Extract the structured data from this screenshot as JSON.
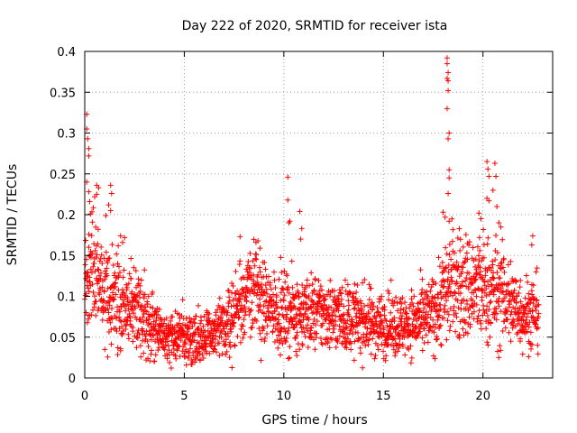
{
  "chart_data": {
    "type": "scatter",
    "title": "Day 222 of 2020, SRMTID for receiver ista",
    "xlabel": "GPS time / hours",
    "ylabel": "SRMTID / TECUs",
    "xlim": [
      0,
      23.5
    ],
    "ylim": [
      0,
      0.4
    ],
    "x_ticks": [
      0,
      5,
      10,
      15,
      20
    ],
    "x_tick_labels": [
      "0",
      "5",
      "10",
      "15",
      "20"
    ],
    "y_ticks": [
      0,
      0.05,
      0.1,
      0.15,
      0.2,
      0.25,
      0.3,
      0.35,
      0.4
    ],
    "y_tick_labels": [
      "0",
      "0.05",
      "0.1",
      "0.15",
      "0.2",
      "0.25",
      "0.3",
      "0.35",
      "0.4"
    ],
    "grid": true,
    "marker": "+",
    "series_color": "#ff0000",
    "trend": {
      "x": [
        0,
        0.5,
        1,
        2,
        3,
        3.5,
        4,
        5,
        6,
        7,
        7.5,
        8,
        8.5,
        9,
        10,
        11,
        12,
        13,
        14,
        15,
        16,
        17,
        17.5,
        18,
        18.5,
        19,
        20,
        21,
        22,
        22.8
      ],
      "y": [
        0.12,
        0.14,
        0.11,
        0.09,
        0.08,
        0.06,
        0.05,
        0.05,
        0.05,
        0.06,
        0.08,
        0.1,
        0.11,
        0.09,
        0.08,
        0.08,
        0.08,
        0.075,
        0.07,
        0.065,
        0.065,
        0.07,
        0.08,
        0.1,
        0.12,
        0.11,
        0.11,
        0.1,
        0.08,
        0.08
      ],
      "spread": [
        0.05,
        0.05,
        0.045,
        0.035,
        0.03,
        0.025,
        0.022,
        0.022,
        0.022,
        0.025,
        0.03,
        0.035,
        0.04,
        0.03,
        0.03,
        0.03,
        0.03,
        0.028,
        0.028,
        0.025,
        0.025,
        0.028,
        0.03,
        0.04,
        0.045,
        0.045,
        0.045,
        0.04,
        0.03,
        0.03
      ]
    },
    "point_count": 2300,
    "outliers": [
      {
        "x": 0.1,
        "y": 0.323
      },
      {
        "x": 0.1,
        "y": 0.305
      },
      {
        "x": 0.15,
        "y": 0.293
      },
      {
        "x": 0.2,
        "y": 0.281
      },
      {
        "x": 0.2,
        "y": 0.272
      },
      {
        "x": 0.1,
        "y": 0.24
      },
      {
        "x": 0.2,
        "y": 0.228
      },
      {
        "x": 0.25,
        "y": 0.216
      },
      {
        "x": 0.6,
        "y": 0.236
      },
      {
        "x": 0.7,
        "y": 0.233
      },
      {
        "x": 0.5,
        "y": 0.222
      },
      {
        "x": 0.3,
        "y": 0.201
      },
      {
        "x": 1.3,
        "y": 0.236
      },
      {
        "x": 1.35,
        "y": 0.226
      },
      {
        "x": 1.2,
        "y": 0.212
      },
      {
        "x": 1.3,
        "y": 0.205
      },
      {
        "x": 1.8,
        "y": 0.174
      },
      {
        "x": 1.9,
        "y": 0.166
      },
      {
        "x": 2.0,
        "y": 0.172
      },
      {
        "x": 10.2,
        "y": 0.246
      },
      {
        "x": 10.2,
        "y": 0.218
      },
      {
        "x": 10.3,
        "y": 0.192
      },
      {
        "x": 10.25,
        "y": 0.19
      },
      {
        "x": 10.8,
        "y": 0.204
      },
      {
        "x": 10.9,
        "y": 0.183
      },
      {
        "x": 10.85,
        "y": 0.17
      },
      {
        "x": 7.8,
        "y": 0.173
      },
      {
        "x": 8.6,
        "y": 0.166
      },
      {
        "x": 8.7,
        "y": 0.168
      },
      {
        "x": 8.8,
        "y": 0.159
      },
      {
        "x": 18.2,
        "y": 0.392
      },
      {
        "x": 18.2,
        "y": 0.385
      },
      {
        "x": 18.25,
        "y": 0.374
      },
      {
        "x": 18.2,
        "y": 0.367
      },
      {
        "x": 18.25,
        "y": 0.364
      },
      {
        "x": 18.25,
        "y": 0.352
      },
      {
        "x": 18.2,
        "y": 0.33
      },
      {
        "x": 18.3,
        "y": 0.3
      },
      {
        "x": 18.25,
        "y": 0.293
      },
      {
        "x": 18.3,
        "y": 0.255
      },
      {
        "x": 18.3,
        "y": 0.245
      },
      {
        "x": 18.25,
        "y": 0.226
      },
      {
        "x": 18.0,
        "y": 0.203
      },
      {
        "x": 18.1,
        "y": 0.197
      },
      {
        "x": 18.3,
        "y": 0.192
      },
      {
        "x": 20.2,
        "y": 0.265
      },
      {
        "x": 20.25,
        "y": 0.256
      },
      {
        "x": 20.6,
        "y": 0.263
      },
      {
        "x": 20.65,
        "y": 0.247
      },
      {
        "x": 20.3,
        "y": 0.247
      },
      {
        "x": 20.2,
        "y": 0.22
      },
      {
        "x": 20.3,
        "y": 0.217
      },
      {
        "x": 20.5,
        "y": 0.23
      },
      {
        "x": 20.7,
        "y": 0.21
      },
      {
        "x": 19.8,
        "y": 0.202
      },
      {
        "x": 19.9,
        "y": 0.195
      },
      {
        "x": 20.8,
        "y": 0.19
      },
      {
        "x": 20.9,
        "y": 0.185
      },
      {
        "x": 22.5,
        "y": 0.174
      },
      {
        "x": 22.45,
        "y": 0.163
      }
    ]
  }
}
